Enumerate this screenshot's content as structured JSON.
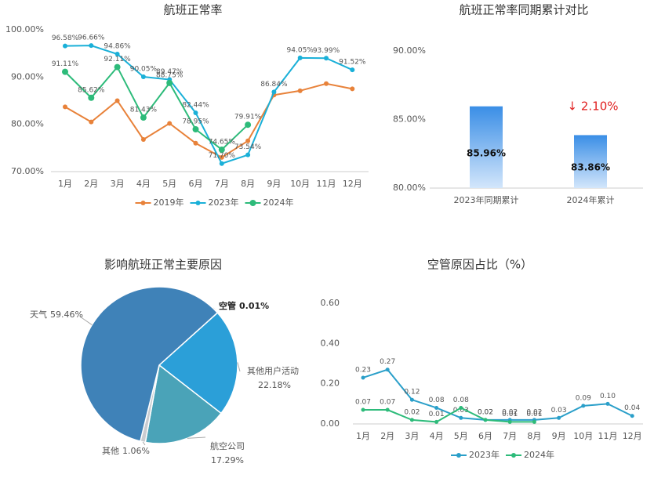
{
  "chart_data": [
    {
      "type": "line",
      "title": "航班正常率",
      "categories": [
        "1月",
        "2月",
        "3月",
        "4月",
        "5月",
        "6月",
        "7月",
        "8月",
        "9月",
        "10月",
        "11月",
        "12月"
      ],
      "series": [
        {
          "name": "2019年",
          "color": "#e8823a",
          "values": [
            83.7,
            80.5,
            85,
            76.8,
            80.2,
            76,
            73,
            76.5,
            86.2,
            87.1,
            88.6,
            87.5
          ]
        },
        {
          "name": "2023年",
          "color": "#1ab0d8",
          "values": [
            96.58,
            96.66,
            94.86,
            90.05,
            89.47,
            82.44,
            71.7,
            73.54,
            86.84,
            94.05,
            93.99,
            91.52
          ],
          "value_labels": [
            "96.58%",
            "96.66%",
            "94.86%",
            "90.05%",
            "89.47%",
            "82.44%",
            "71.70%",
            "73.54%",
            "86.84%",
            "94.05%",
            "93.99%",
            "91.52%"
          ]
        },
        {
          "name": "2024年",
          "color": "#2dbb7a",
          "values": [
            91.11,
            85.62,
            92.11,
            81.43,
            88.75,
            78.95,
            74.65,
            79.91,
            null,
            null,
            null,
            null
          ],
          "value_labels": [
            "91.11%",
            "85.62%",
            "92.11%",
            "81.43%",
            "88.75%",
            "78.95%",
            "74.65%",
            "79.91%",
            null,
            null,
            null,
            null
          ]
        }
      ],
      "ylim": [
        70,
        100
      ],
      "yticks": [
        {
          "value": 70,
          "label": "70.00%"
        },
        {
          "value": 80,
          "label": "80.00%"
        },
        {
          "value": 90,
          "label": "90.00%"
        },
        {
          "value": 100,
          "label": "100.00%"
        }
      ],
      "grid": false,
      "legend": "bottom"
    },
    {
      "type": "bar",
      "title": "航班正常率同期累计对比",
      "categories": [
        "2023年同期累计",
        "2024年累计"
      ],
      "values": [
        85.96,
        83.86
      ],
      "value_labels": [
        "85.96%",
        "83.86%"
      ],
      "color": "#3a8ee6",
      "ylim": [
        80,
        90
      ],
      "yticks": [
        {
          "value": 80,
          "label": "80.00%"
        },
        {
          "value": 85,
          "label": "85.00%"
        },
        {
          "value": 90,
          "label": "90.00%"
        }
      ],
      "annotation": "↓ 2.10%",
      "grid": false
    },
    {
      "type": "pie",
      "title": "影响航班正常主要原因",
      "categories": [
        "空管",
        "其他用户活动",
        "航空公司",
        "其他",
        "天气"
      ],
      "values": [
        0.01,
        22.18,
        17.29,
        1.06,
        59.46
      ],
      "value_labels": [
        "0.01%",
        "22.18%",
        "17.29%",
        "1.06%",
        "59.46%"
      ],
      "colors": [
        "#2a6fa8",
        "#2b9fd8",
        "#4aa3b8",
        "#c9ccd0",
        "#3f82b8"
      ]
    },
    {
      "type": "line",
      "title": "空管原因占比（%）",
      "categories": [
        "1月",
        "2月",
        "3月",
        "4月",
        "5月",
        "6月",
        "7月",
        "8月",
        "9月",
        "10月",
        "11月",
        "12月"
      ],
      "series": [
        {
          "name": "2023年",
          "color": "#2a9fc9",
          "values": [
            0.23,
            0.27,
            0.12,
            0.08,
            0.03,
            0.02,
            0.02,
            0.02,
            0.03,
            0.09,
            0.1,
            0.04
          ],
          "value_labels": [
            "0.23",
            "0.27",
            "0.12",
            "0.08",
            "0.03",
            "0.02",
            "0.02",
            "0.02",
            "0.03",
            "0.09",
            "0.10",
            "0.04"
          ]
        },
        {
          "name": "2024年",
          "color": "#2dbb7a",
          "values": [
            0.07,
            0.07,
            0.02,
            0.01,
            0.08,
            0.02,
            0.01,
            0.01,
            null,
            null,
            null,
            null
          ],
          "value_labels": [
            "0.07",
            "0.07",
            "0.02",
            "0.01",
            "0.08",
            "0.02",
            "0.01",
            "0.01",
            null,
            null,
            null,
            null
          ]
        }
      ],
      "ylim": [
        0,
        0.6
      ],
      "yticks": [
        {
          "value": 0,
          "label": "0.00"
        },
        {
          "value": 0.2,
          "label": "0.20"
        },
        {
          "value": 0.4,
          "label": "0.40"
        },
        {
          "value": 0.6,
          "label": "0.60"
        }
      ],
      "grid": false,
      "legend": "bottom"
    }
  ]
}
